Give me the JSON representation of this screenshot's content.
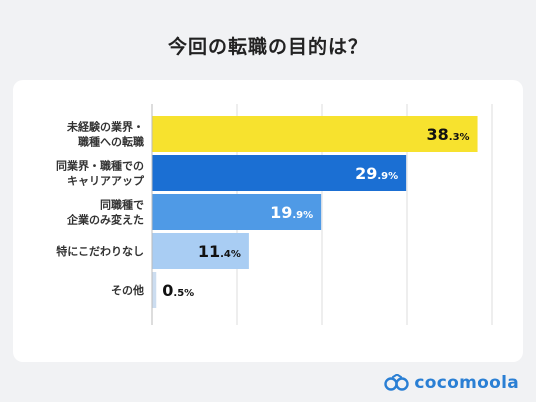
{
  "page": {
    "title": "今回の転職の目的は？"
  },
  "brand": {
    "name": "cocomoola"
  },
  "colors": {
    "background": "#f1f2f4",
    "card": "#ffffff",
    "grid": "#dddddd",
    "bars": [
      "#f7e22e",
      "#1b6fd3",
      "#4f9ae6",
      "#a9cdf3",
      "#ccddf0"
    ],
    "label_dark": "#111111",
    "label_light": "#ffffff",
    "brand": "#2a7fd4"
  },
  "chart_data": {
    "type": "bar",
    "orientation": "horizontal",
    "title": "今回の転職の目的は？",
    "unit": "%",
    "categories": [
      [
        "未経験の業界・",
        "職種への転職"
      ],
      [
        "同業界・職種での",
        "キャリアアップ"
      ],
      [
        "同職種で",
        "企業のみ変えた"
      ],
      [
        "特にこだわりなし"
      ],
      [
        "その他"
      ]
    ],
    "values": [
      38.3,
      29.9,
      19.9,
      11.4,
      0.5
    ],
    "value_labels": [
      {
        "int": "38",
        "dec": ".3%"
      },
      {
        "int": "29",
        "dec": ".9%"
      },
      {
        "int": "19",
        "dec": ".9%"
      },
      {
        "int": "11",
        "dec": ".4%"
      },
      {
        "int": "0",
        "dec": ".5%"
      }
    ],
    "xlim": [
      0,
      50
    ],
    "grid": true,
    "legend": "none"
  }
}
